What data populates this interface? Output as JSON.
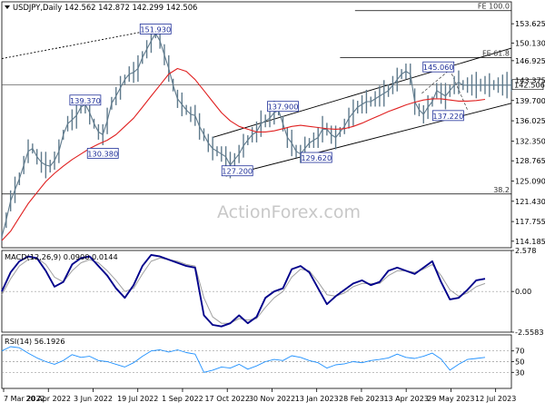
{
  "chart_data": [
    {
      "type": "line",
      "title": "USDJPY,Daily 142.562 142.872 142.299 142.506",
      "symbol": "USDJPY,Daily",
      "ohlc": {
        "open": "142.562",
        "high": "142.872",
        "low": "142.299",
        "close": "142.506"
      },
      "last_price": 142.506,
      "last_price_label": "142.506",
      "ylim": [
        113.0,
        157.6
      ],
      "y_ticks": [
        {
          "v": 153.625,
          "label": "153.625"
        },
        {
          "v": 150.13,
          "label": "150.130"
        },
        {
          "v": 146.925,
          "label": "146.925"
        },
        {
          "v": 143.375,
          "label": "143.375"
        },
        {
          "v": 139.7,
          "label": "139.700"
        },
        {
          "v": 136.025,
          "label": "136.025"
        },
        {
          "v": 132.35,
          "label": "132.350"
        },
        {
          "v": 128.765,
          "label": "128.765"
        },
        {
          "v": 125.09,
          "label": "125.090"
        },
        {
          "v": 121.43,
          "label": "121.430"
        },
        {
          "v": 117.755,
          "label": "117.755"
        },
        {
          "v": 114.185,
          "label": "114.185"
        }
      ],
      "x_ticks": [
        "7 Mar 2022",
        "20 Apr 2022",
        "3 Jun 2022",
        "19 Jul 2022",
        "1 Sep 2022",
        "17 Oct 2022",
        "30 Nov 2022",
        "13 Jan 2023",
        "28 Feb 2023",
        "13 Apr 2023",
        "29 May 2023",
        "12 Jul 2023"
      ],
      "series": [
        {
          "color": "#5f7a8c",
          "x": [
            0,
            5,
            10,
            15,
            20,
            25,
            30,
            35,
            40,
            45,
            50,
            55,
            60,
            65,
            70,
            75,
            80,
            85,
            90,
            95,
            100,
            105,
            110,
            115,
            120,
            125,
            130,
            135,
            140,
            145,
            150,
            155,
            160,
            165,
            170,
            175,
            180,
            185,
            190,
            195,
            200,
            205,
            210,
            215,
            220,
            225,
            230,
            235,
            240,
            245,
            250,
            255,
            260,
            265,
            270,
            275,
            280,
            285,
            290,
            295,
            300,
            305,
            310,
            315,
            320,
            325,
            330,
            335,
            340,
            345,
            350,
            355,
            360,
            365,
            370,
            375,
            380,
            385,
            390,
            395,
            400,
            405,
            410,
            415,
            420,
            425,
            430,
            435,
            440,
            445,
            450,
            455,
            460,
            465,
            470,
            475,
            480,
            485,
            490,
            495,
            500,
            505,
            510,
            515,
            520,
            525,
            530,
            535,
            540,
            545,
            550,
            555,
            560,
            565,
            570,
            575,
            580
          ],
          "values": [
            115.0,
            118.0,
            121.5,
            123.5,
            125.5,
            128.0,
            130.5,
            131.0,
            129.5,
            128.5,
            128.0,
            127.8,
            128.8,
            130.5,
            133.5,
            135.5,
            136.2,
            137.0,
            138.5,
            139.0,
            137.5,
            135.5,
            134.0,
            133.5,
            136.0,
            139.2,
            140.5,
            142.0,
            143.5,
            144.5,
            144.8,
            145.5,
            147.5,
            149.0,
            150.5,
            151.9,
            150.5,
            148.0,
            145.5,
            142.5,
            140.0,
            139.0,
            138.0,
            137.2,
            137.0,
            135.0,
            133.5,
            132.0,
            131.0,
            130.5,
            130.0,
            129.5,
            128.0,
            129.0,
            130.0,
            131.5,
            132.5,
            133.5,
            134.0,
            135.5,
            136.0,
            136.5,
            137.5,
            137.9,
            135.5,
            133.0,
            132.0,
            130.5,
            130.0,
            131.0,
            132.0,
            132.5,
            133.0,
            134.5,
            134.5,
            133.5,
            133.0,
            134.0,
            135.0,
            136.5,
            137.5,
            138.5,
            139.0,
            139.5,
            139.5,
            140.0,
            140.5,
            141.0,
            141.5,
            142.5,
            143.5,
            144.5,
            145.0,
            144.5,
            139.5,
            138.0,
            137.2,
            138.5,
            139.5,
            141.5,
            141.0,
            140.5,
            141.5,
            142.5,
            143.0,
            142.5,
            142.5,
            142.5,
            142.5,
            142.5,
            142.5,
            142.5,
            142.5,
            142.5,
            142.5,
            142.5,
            142.5
          ]
        },
        {
          "color": "#e02020",
          "x": [
            0,
            10,
            20,
            30,
            40,
            50,
            60,
            70,
            80,
            90,
            100,
            110,
            120,
            130,
            140,
            150,
            160,
            170,
            180,
            190,
            200,
            210,
            220,
            230,
            240,
            250,
            260,
            270,
            280,
            290,
            300,
            310,
            320,
            330,
            340,
            350,
            360,
            370,
            380,
            390,
            400,
            410,
            420,
            430,
            440,
            450,
            460,
            470,
            480,
            490,
            500,
            510,
            520,
            530,
            540,
            550
          ],
          "values": [
            114.3,
            116.0,
            118.5,
            121.0,
            123.0,
            125.0,
            126.5,
            127.8,
            129.0,
            130.0,
            131.0,
            131.8,
            132.5,
            133.5,
            135.0,
            136.5,
            138.5,
            140.5,
            142.5,
            144.5,
            145.5,
            145.0,
            143.5,
            141.5,
            139.5,
            137.5,
            136.0,
            135.0,
            134.5,
            134.0,
            134.0,
            134.2,
            134.6,
            135.0,
            135.2,
            135.0,
            134.8,
            134.6,
            134.5,
            134.6,
            135.0,
            135.6,
            136.3,
            137.0,
            137.7,
            138.3,
            138.9,
            139.4,
            139.8,
            140.0,
            140.0,
            139.8,
            139.6,
            139.6,
            139.7,
            139.9
          ]
        }
      ],
      "annotations": [
        {
          "label": "151.930",
          "value": 151.93
        },
        {
          "label": "139.370",
          "value": 139.37
        },
        {
          "label": "130.380",
          "value": 130.38
        },
        {
          "label": "137.900",
          "value": 137.9
        },
        {
          "label": "127.200",
          "value": 127.2
        },
        {
          "label": "129.620",
          "value": 129.62
        },
        {
          "label": "145.060",
          "value": 145.06
        },
        {
          "label": "137.220",
          "value": 137.22
        }
      ],
      "fib_levels": [
        {
          "label": "FE 100.0",
          "value": 156.0
        },
        {
          "label": "FE 61.8",
          "value": 147.5
        },
        {
          "label": "38.2",
          "value": 122.75
        }
      ],
      "watermark": "ActionForex.com"
    },
    {
      "type": "line",
      "title": "MACD(12,26,9) 0.0900 0.0144",
      "ylim": [
        -2.5583,
        2.578
      ],
      "y_ticks": [
        {
          "v": 2.578,
          "label": "2.578"
        },
        {
          "v": 0.0,
          "label": "0.00"
        },
        {
          "v": -2.5583,
          "label": "-2.5583"
        }
      ],
      "series": [
        {
          "color": "#00008b",
          "x": [
            0,
            10,
            20,
            30,
            40,
            50,
            60,
            70,
            80,
            90,
            100,
            110,
            120,
            130,
            140,
            150,
            160,
            170,
            180,
            190,
            200,
            210,
            220,
            230,
            240,
            250,
            260,
            270,
            280,
            290,
            300,
            310,
            320,
            330,
            340,
            350,
            360,
            370,
            380,
            390,
            400,
            410,
            420,
            430,
            440,
            450,
            460,
            470,
            480,
            490,
            500,
            510,
            520,
            530,
            540,
            550
          ],
          "values": [
            0.0,
            1.2,
            1.9,
            2.2,
            2.1,
            1.3,
            0.3,
            0.6,
            1.7,
            2.1,
            2.2,
            1.6,
            1.0,
            0.2,
            -0.4,
            0.4,
            1.6,
            2.3,
            2.2,
            2.0,
            1.8,
            1.6,
            1.5,
            -1.5,
            -2.1,
            -2.2,
            -2.0,
            -1.5,
            -2.0,
            -1.6,
            -0.4,
            0.0,
            0.2,
            1.4,
            1.6,
            1.2,
            0.2,
            -0.8,
            -0.3,
            0.1,
            0.5,
            0.7,
            0.4,
            0.6,
            1.3,
            1.5,
            1.3,
            1.1,
            1.5,
            1.9,
            0.6,
            -0.5,
            -0.4,
            0.1,
            0.7,
            0.8
          ]
        },
        {
          "color": "#a0a0a0",
          "x": [
            0,
            10,
            20,
            30,
            40,
            50,
            60,
            70,
            80,
            90,
            100,
            110,
            120,
            130,
            140,
            150,
            160,
            170,
            180,
            190,
            200,
            210,
            220,
            230,
            240,
            250,
            260,
            270,
            280,
            290,
            300,
            310,
            320,
            330,
            340,
            350,
            360,
            370,
            380,
            390,
            400,
            410,
            420,
            430,
            440,
            450,
            460,
            470,
            480,
            490,
            500,
            510,
            520,
            530,
            540,
            550
          ],
          "values": [
            -0.2,
            0.8,
            1.6,
            2.0,
            2.1,
            1.7,
            0.9,
            0.6,
            1.3,
            1.8,
            2.0,
            1.8,
            1.3,
            0.7,
            0.0,
            0.2,
            1.1,
            1.9,
            2.1,
            2.0,
            1.9,
            1.7,
            1.6,
            -0.4,
            -1.6,
            -2.0,
            -2.0,
            -1.7,
            -1.8,
            -1.7,
            -1.0,
            -0.4,
            0.0,
            0.9,
            1.4,
            1.3,
            0.6,
            -0.2,
            -0.3,
            -0.1,
            0.3,
            0.5,
            0.5,
            0.5,
            1.0,
            1.3,
            1.3,
            1.2,
            1.4,
            1.7,
            1.0,
            0.1,
            -0.3,
            -0.1,
            0.3,
            0.5
          ]
        }
      ]
    },
    {
      "type": "line",
      "title": "RSI(14) 56.1926",
      "ylim": [
        0,
        100
      ],
      "levels": [
        70,
        50,
        30
      ],
      "y_ticks": [
        {
          "v": 70,
          "label": "70"
        },
        {
          "v": 50,
          "label": "50"
        },
        {
          "v": 30,
          "label": "30"
        }
      ],
      "series": [
        {
          "color": "#1e90ff",
          "x": [
            0,
            10,
            20,
            30,
            40,
            50,
            60,
            70,
            80,
            90,
            100,
            110,
            120,
            130,
            140,
            150,
            160,
            170,
            180,
            190,
            200,
            210,
            220,
            230,
            240,
            250,
            260,
            270,
            280,
            290,
            300,
            310,
            320,
            330,
            340,
            350,
            360,
            370,
            380,
            390,
            400,
            410,
            420,
            430,
            440,
            450,
            460,
            470,
            480,
            490,
            500,
            510,
            520,
            530,
            540,
            550
          ],
          "values": [
            70,
            78,
            76,
            66,
            57,
            50,
            45,
            52,
            63,
            58,
            60,
            52,
            50,
            45,
            40,
            48,
            60,
            70,
            72,
            68,
            72,
            67,
            64,
            30,
            34,
            40,
            38,
            45,
            36,
            42,
            50,
            54,
            52,
            61,
            58,
            52,
            48,
            38,
            44,
            46,
            50,
            48,
            52,
            54,
            57,
            64,
            58,
            56,
            60,
            66,
            55,
            34,
            45,
            54,
            56,
            58
          ]
        }
      ]
    }
  ]
}
